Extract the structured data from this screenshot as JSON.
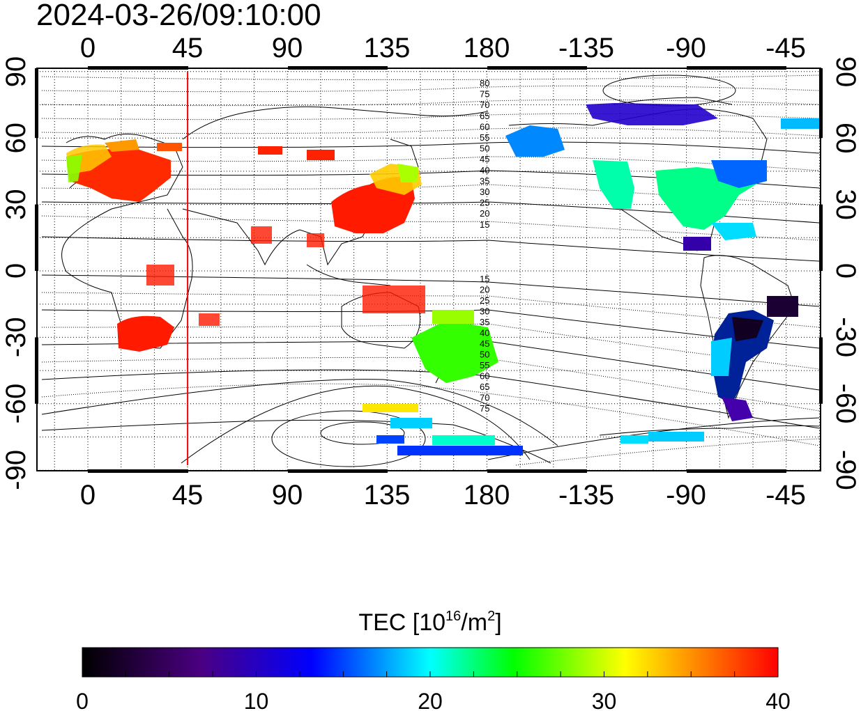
{
  "timestamp": "2024-03-26/09:10:00",
  "map": {
    "lon_ticks_top": [
      "0",
      "45",
      "90",
      "135",
      "180",
      "-135",
      "-90",
      "-45"
    ],
    "lon_ticks_bottom": [
      "0",
      "45",
      "90",
      "135",
      "180",
      "-135",
      "-90",
      "-45"
    ],
    "lat_ticks_left": [
      "90",
      "60",
      "30",
      "0",
      "-30",
      "-60",
      "-90"
    ],
    "lat_ticks_right": [
      "90",
      "60",
      "30",
      "0",
      "-30",
      "-60",
      "-90"
    ],
    "terminator_longitude": 45,
    "terminator_color": "#ff0000",
    "contour_labels_north": [
      "80",
      "75",
      "70",
      "65",
      "60",
      "55",
      "50",
      "45",
      "40",
      "35",
      "30",
      "25",
      "20",
      "15"
    ],
    "contour_labels_south": [
      "15",
      "20",
      "25",
      "30",
      "35",
      "40",
      "45",
      "50",
      "55",
      "60",
      "65",
      "70",
      "75"
    ]
  },
  "colorbar": {
    "title_prefix": "TEC  [10",
    "title_sup1": "16",
    "title_mid": "/m",
    "title_sup2": "2",
    "title_suffix": "]",
    "min": 0,
    "max": 40,
    "tick_labels": [
      "0",
      "10",
      "20",
      "30",
      "40"
    ],
    "colors": [
      "#000000",
      "#4b0082",
      "#0000ff",
      "#00ffff",
      "#00ff00",
      "#ffff00",
      "#ff0000"
    ]
  }
}
